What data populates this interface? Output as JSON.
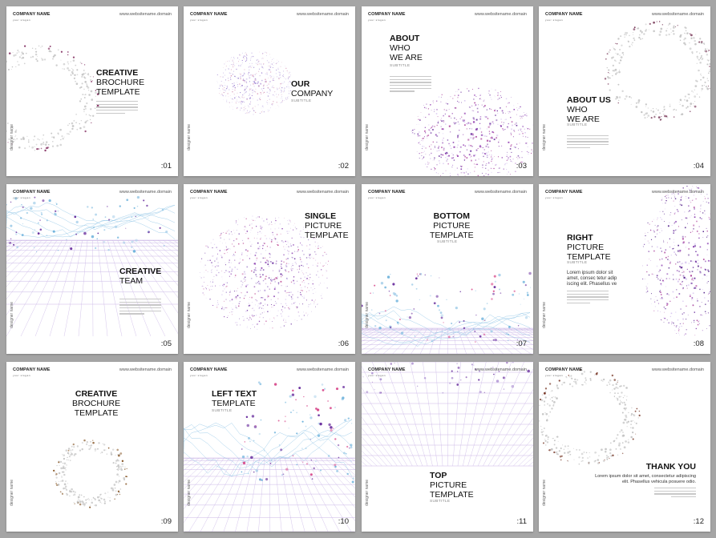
{
  "cards": [
    {
      "company": "COMPANY NAME",
      "slogan": "your slogan",
      "url": "www.websitename.domain",
      "designer": "designer name",
      "num": ":01",
      "title": [
        "CREATIVE",
        "BROCHURE",
        "TEMPLATE"
      ]
    },
    {
      "company": "COMPANY NAME",
      "slogan": "your slogan",
      "url": "www.websitename.domain",
      "designer": "designer name",
      "num": ":02",
      "title": [
        "OUR",
        "COMPANY"
      ],
      "subtitle": "SUBTITLE"
    },
    {
      "company": "COMPANY NAME",
      "slogan": "your slogan",
      "url": "www.websitename.domain",
      "designer": "designer name",
      "num": ":03",
      "title": [
        "ABOUT",
        "WHO",
        "WE ARE"
      ],
      "subtitle": "SUBTITLE"
    },
    {
      "company": "COMPANY NAME",
      "slogan": "your slogan",
      "url": "www.websitename.domain",
      "designer": "designer name",
      "num": ":04",
      "title": [
        "ABOUT US",
        "WHO",
        "WE ARE"
      ],
      "subtitle": "SUBTITLE"
    },
    {
      "company": "COMPANY NAME",
      "slogan": "your slogan",
      "url": "www.websitename.domain",
      "designer": "designer name",
      "num": ":05",
      "title": [
        "CREATIVE",
        "TEAM"
      ]
    },
    {
      "company": "COMPANY NAME",
      "slogan": "your slogan",
      "url": "www.websitename.domain",
      "designer": "designer name",
      "num": ":06",
      "title": [
        "SINGLE",
        "PICTURE",
        "TEMPLATE"
      ]
    },
    {
      "company": "COMPANY NAME",
      "slogan": "your slogan",
      "url": "www.websitename.domain",
      "designer": "designer name",
      "num": ":07",
      "title": [
        "BOTTOM",
        "PICTURE",
        "TEMPLATE"
      ],
      "subtitle": "SUBTITLE"
    },
    {
      "company": "COMPANY NAME",
      "slogan": "your slogan",
      "url": "www.websitename.domain",
      "designer": "designer name",
      "num": ":08",
      "title": [
        "RIGHT",
        "PICTURE",
        "TEMPLATE"
      ],
      "subtitle": "SUBTITLE",
      "paragraph": [
        "Lorem ipsum dolor sit",
        "amet, consec tetur adip",
        "iscing elit. Phasellus ve"
      ]
    },
    {
      "company": "COMPANY NAME",
      "slogan": "your slogan",
      "url": "www.websitename.domain",
      "designer": "designer name",
      "num": ":09",
      "title": [
        "CREATIVE",
        "BROCHURE",
        "TEMPLATE"
      ]
    },
    {
      "company": "COMPANY NAME",
      "slogan": "your slogan",
      "url": "www.websitename.domain",
      "designer": "designer name",
      "num": ":10",
      "title": [
        "LEFT TEXT",
        "TEMPLATE"
      ],
      "subtitle": "SUBTITLE"
    },
    {
      "company": "COMPANY NAME",
      "slogan": "your slogan",
      "url": "www.websitename.domain",
      "designer": "designer name",
      "num": ":11",
      "title": [
        "TOP",
        "PICTURE",
        "TEMPLATE"
      ],
      "subtitle": "SUBTITLE"
    },
    {
      "company": "COMPANY NAME",
      "slogan": "your slogan",
      "url": "www.websitename.domain",
      "designer": "designer name",
      "num": ":12",
      "title": [
        "THANK YOU"
      ],
      "paragraph": [
        "Lorem ipsum dolor sit amet, consectetur adipiscing",
        "elit. Phasellus vehicula posuere odio."
      ]
    }
  ],
  "colors": {
    "background": "#a5a5a5",
    "accent_purple": "#6a2f9e",
    "accent_pink": "#d84a8c",
    "accent_blue": "#6fb3dc",
    "grid": "#c9b5e6"
  }
}
